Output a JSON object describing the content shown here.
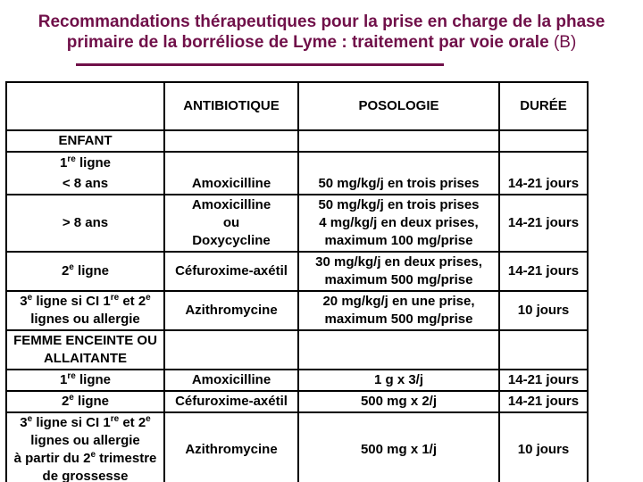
{
  "colors": {
    "title": "#701049",
    "heading": "#1a1a6e",
    "body": "#000000",
    "border": "#000000",
    "background": "#ffffff"
  },
  "title": {
    "line1": "Recommandations thérapeutiques pour la prise en charge de la phase",
    "line2_bold": "primaire de la borréliose de Lyme : traitement par voie orale ",
    "line2_normal": "(B)"
  },
  "table": {
    "columns": {
      "antibiotique": "ANTIBIOTIQUE",
      "posologie": "POSOLOGIE",
      "duree": "DURÉE"
    },
    "sections": {
      "enfant": {
        "label": "ENFANT"
      },
      "femme": {
        "label_lines": [
          "FEMME ENCEINTE OU",
          "ALLAITANTE"
        ]
      }
    },
    "enfant_rows": {
      "ligne1": {
        "label": [
          "1",
          {
            "sup": "re"
          },
          " ligne"
        ],
        "sublabel": "< 8 ans",
        "antibiotique": [
          "Amoxicilline"
        ],
        "posologie": [
          "50 mg/kg/j en trois prises"
        ],
        "duree": "14-21 jours"
      },
      "plus8ans": {
        "label": "> 8 ans",
        "antibiotique": [
          "Amoxicilline",
          "ou",
          "Doxycycline"
        ],
        "posologie": [
          "50 mg/kg/j en trois prises",
          "4 mg/kg/j en deux prises,",
          "maximum 100 mg/prise"
        ],
        "duree": "14-21 jours"
      },
      "ligne2": {
        "label": [
          "2",
          {
            "sup": "e"
          },
          " ligne"
        ],
        "antibiotique": [
          "Céfuroxime-axétil"
        ],
        "posologie": [
          "30 mg/kg/j en deux prises,",
          "maximum 500 mg/prise"
        ],
        "duree": "14-21 jours"
      },
      "ligne3": {
        "label_lines": [
          [
            "3",
            {
              "sup": "e"
            },
            " ligne si CI 1",
            {
              "sup": "re"
            },
            " et 2",
            {
              "sup": "e"
            }
          ],
          [
            "lignes ou allergie"
          ]
        ],
        "antibiotique": [
          "Azithromycine"
        ],
        "posologie": [
          "20 mg/kg/j en une prise,",
          "maximum 500 mg/prise"
        ],
        "duree": "10 jours"
      }
    },
    "femme_rows": {
      "ligne1": {
        "label": [
          "1",
          {
            "sup": "re"
          },
          " ligne"
        ],
        "antibiotique": [
          "Amoxicilline"
        ],
        "posologie": [
          "1 g x 3/j"
        ],
        "duree": "14-21 jours"
      },
      "ligne2": {
        "label": [
          "2",
          {
            "sup": "e"
          },
          " ligne"
        ],
        "antibiotique": [
          "Céfuroxime-axétil"
        ],
        "posologie": [
          "500 mg x 2/j"
        ],
        "duree": "14-21 jours"
      },
      "ligne3": {
        "label_lines": [
          [
            "3",
            {
              "sup": "e"
            },
            " ligne si CI 1",
            {
              "sup": "re"
            },
            " et 2",
            {
              "sup": "e"
            }
          ],
          [
            "lignes ou allergie"
          ],
          [
            "à partir du 2",
            {
              "sup": "e"
            },
            " trimestre"
          ],
          [
            "de grossesse"
          ]
        ],
        "antibiotique": [
          "Azithromycine"
        ],
        "posologie": [
          "500 mg x 1/j"
        ],
        "duree": "10 jours"
      }
    }
  }
}
